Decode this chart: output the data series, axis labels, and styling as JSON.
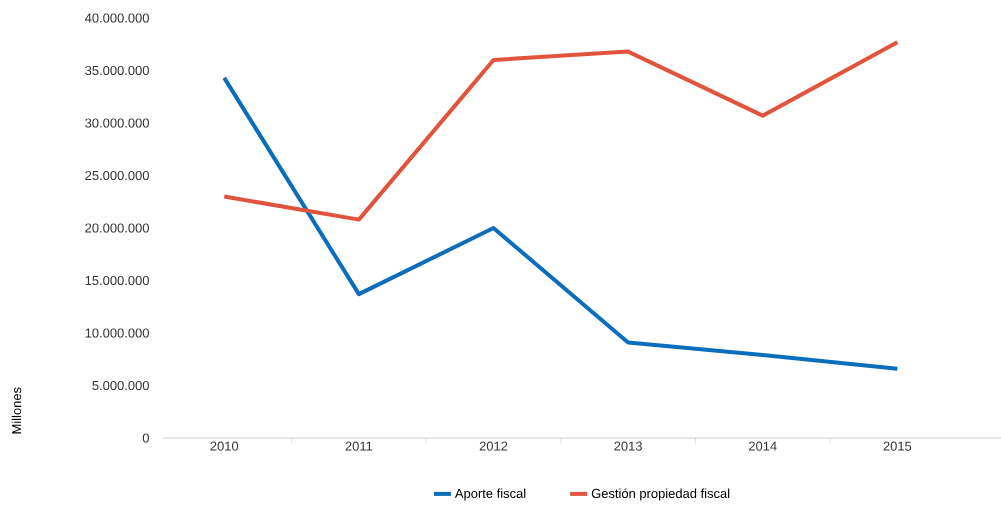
{
  "chart_data": {
    "type": "line",
    "ylabel": "Millones",
    "categories": [
      "2010",
      "2011",
      "2012",
      "2013",
      "2014",
      "2015"
    ],
    "series": [
      {
        "name": "Aporte fiscal",
        "color": "#0a6ebd",
        "values": [
          34300000,
          13700000,
          20000000,
          9100000,
          7900000,
          6600000
        ]
      },
      {
        "name": "Gestión propiedad fiscal",
        "color": "#e0533d",
        "values": [
          23000000,
          20800000,
          36000000,
          36800000,
          30700000,
          37700000
        ]
      }
    ],
    "ylim": [
      0,
      40000000
    ],
    "yticks": [
      {
        "value": 0,
        "label": "0"
      },
      {
        "value": 5000000,
        "label": "5.000.000"
      },
      {
        "value": 10000000,
        "label": "10.000.000"
      },
      {
        "value": 15000000,
        "label": "15.000.000"
      },
      {
        "value": 20000000,
        "label": "20.000.000"
      },
      {
        "value": 25000000,
        "label": "25.000.000"
      },
      {
        "value": 30000000,
        "label": "30.000.000"
      },
      {
        "value": 35000000,
        "label": "35.000.000"
      },
      {
        "value": 40000000,
        "label": "40.000.000"
      }
    ],
    "legend": "bottom",
    "marker": "none"
  }
}
